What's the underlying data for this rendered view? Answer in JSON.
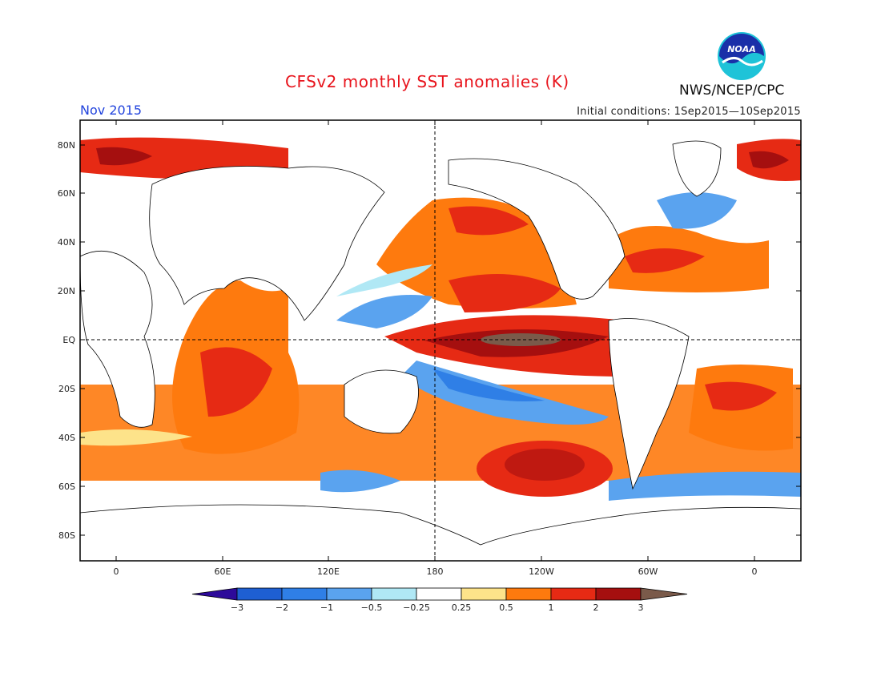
{
  "title": "CFSv2 monthly SST anomalies (K)",
  "month": "Nov 2015",
  "initial_conditions": "Initial conditions: 1Sep2015—10Sep2015",
  "agency": "NWS/NCEP/CPC",
  "logo": {
    "text": "NOAA",
    "icon": "noaa-logo"
  },
  "lat_labels": [
    "80N",
    "60N",
    "40N",
    "20N",
    "EQ",
    "20S",
    "40S",
    "60S",
    "80S"
  ],
  "lon_labels": [
    "0",
    "60E",
    "120E",
    "180",
    "120W",
    "60W",
    "0"
  ],
  "colorbar": {
    "labels": [
      "−3",
      "−2",
      "−1",
      "−0.5",
      "−0.25",
      "0.25",
      "0.5",
      "1",
      "2",
      "3"
    ],
    "colors": [
      "#2d0a9a",
      "#1e5fd2",
      "#2f7fe6",
      "#5aa3ef",
      "#b0e8f5",
      "#ffffff",
      "#fde38a",
      "#fe7a0e",
      "#e62a14",
      "#a50f0f",
      "#7a5a4a"
    ]
  }
}
